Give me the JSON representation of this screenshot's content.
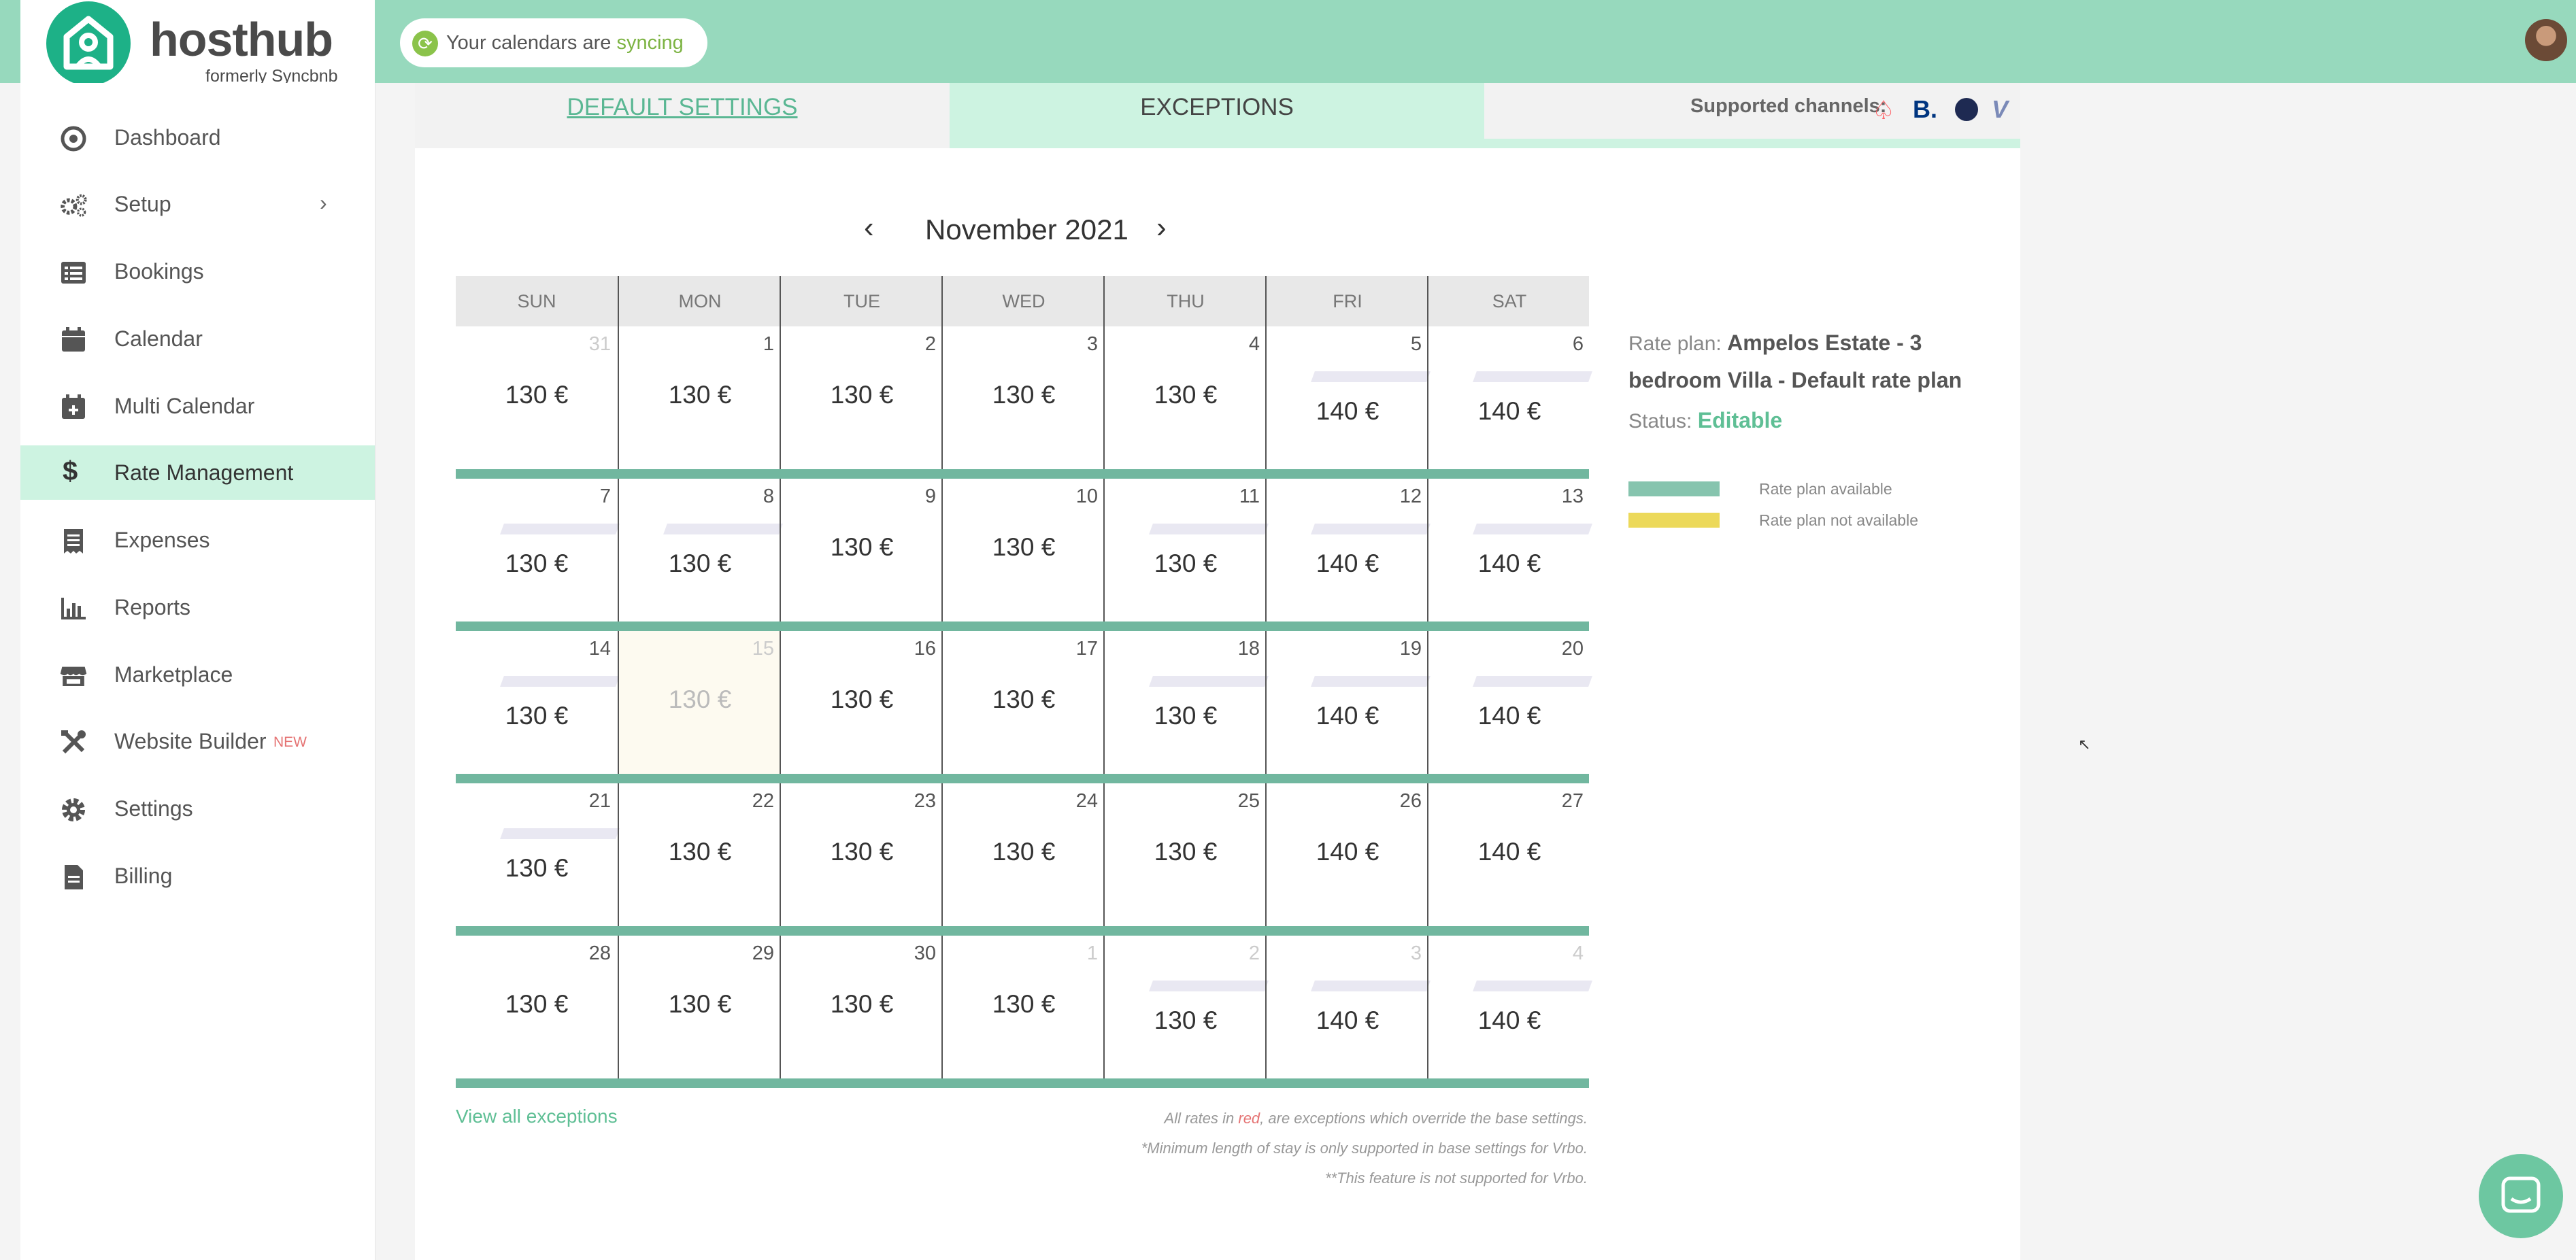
{
  "brand": {
    "name": "hosthub",
    "subtitle": "formerly Syncbnb"
  },
  "sync": {
    "prefix": "Your calendars are ",
    "status": "syncing"
  },
  "sidebar": {
    "items": [
      {
        "label": "Dashboard",
        "icon": "dashboard-icon"
      },
      {
        "label": "Setup",
        "icon": "gears-icon"
      },
      {
        "label": "Bookings",
        "icon": "list-icon"
      },
      {
        "label": "Calendar",
        "icon": "calendar-icon"
      },
      {
        "label": "Multi Calendar",
        "icon": "calendar-plus-icon"
      },
      {
        "label": "Rate Management",
        "icon": "dollar-icon"
      },
      {
        "label": "Expenses",
        "icon": "receipt-icon"
      },
      {
        "label": "Reports",
        "icon": "bar-chart-icon"
      },
      {
        "label": "Marketplace",
        "icon": "store-icon"
      },
      {
        "label": "Website Builder",
        "icon": "tools-icon",
        "badge": "NEW"
      },
      {
        "label": "Settings",
        "icon": "gear-icon"
      },
      {
        "label": "Billing",
        "icon": "document-icon"
      }
    ],
    "active": "Rate Management"
  },
  "tabs": {
    "default": "DEFAULT SETTINGS",
    "exceptions": "EXCEPTIONS",
    "active": "EXCEPTIONS"
  },
  "channels": {
    "label": "Supported channels:",
    "items": [
      "airbnb-icon",
      "booking-icon",
      "expedia-icon",
      "vrbo-icon"
    ]
  },
  "calendar": {
    "month": "November 2021",
    "days_of_week": [
      "SUN",
      "MON",
      "TUE",
      "WED",
      "THU",
      "FRI",
      "SAT"
    ],
    "weeks": [
      [
        {
          "d": "31",
          "p": "130 €",
          "muted": true
        },
        {
          "d": "1",
          "p": "130 €"
        },
        {
          "d": "2",
          "p": "130 €"
        },
        {
          "d": "3",
          "p": "130 €"
        },
        {
          "d": "4",
          "p": "130 €"
        },
        {
          "d": "5",
          "p": "140 €"
        },
        {
          "d": "6",
          "p": "140 €"
        }
      ],
      [
        {
          "d": "7",
          "p": "130 €"
        },
        {
          "d": "8",
          "p": "130 €"
        },
        {
          "d": "9",
          "p": "130 €"
        },
        {
          "d": "10",
          "p": "130 €"
        },
        {
          "d": "11",
          "p": "130 €"
        },
        {
          "d": "12",
          "p": "140 €"
        },
        {
          "d": "13",
          "p": "140 €"
        }
      ],
      [
        {
          "d": "14",
          "p": "130 €"
        },
        {
          "d": "15",
          "p": "130 €",
          "today": true
        },
        {
          "d": "16",
          "p": "130 €"
        },
        {
          "d": "17",
          "p": "130 €"
        },
        {
          "d": "18",
          "p": "130 €"
        },
        {
          "d": "19",
          "p": "140 €"
        },
        {
          "d": "20",
          "p": "140 €"
        }
      ],
      [
        {
          "d": "21",
          "p": "130 €"
        },
        {
          "d": "22",
          "p": "130 €"
        },
        {
          "d": "23",
          "p": "130 €"
        },
        {
          "d": "24",
          "p": "130 €"
        },
        {
          "d": "25",
          "p": "130 €"
        },
        {
          "d": "26",
          "p": "140 €"
        },
        {
          "d": "27",
          "p": "140 €"
        }
      ],
      [
        {
          "d": "28",
          "p": "130 €"
        },
        {
          "d": "29",
          "p": "130 €"
        },
        {
          "d": "30",
          "p": "130 €"
        },
        {
          "d": "1",
          "p": "130 €",
          "muted": true
        },
        {
          "d": "2",
          "p": "130 €",
          "muted": true
        },
        {
          "d": "3",
          "p": "140 €",
          "muted": true
        },
        {
          "d": "4",
          "p": "140 €",
          "muted": true
        }
      ]
    ]
  },
  "rate_plan": {
    "label": "Rate plan: ",
    "name": "Ampelos Estate - 3 bedroom Villa - Default rate plan",
    "status_label": "Status: ",
    "status": "Editable"
  },
  "legend": [
    {
      "label": "Rate plan available",
      "color": "#86c4ae"
    },
    {
      "label": "Rate plan not available",
      "color": "#ecd95a"
    }
  ],
  "footer": {
    "view_all": "View all exceptions",
    "note1_a": "All rates in ",
    "note1_red": "red",
    "note1_b": ", are exceptions which override the base settings.",
    "note2": "*Minimum length of stay is only supported in base settings for Vrbo.",
    "note3": "**This feature is not supported for Vrbo."
  },
  "colors": {
    "accent": "#97d9bd",
    "brand": "#1db187",
    "active_bg": "#cdf3e1",
    "available": "#71b79f"
  }
}
